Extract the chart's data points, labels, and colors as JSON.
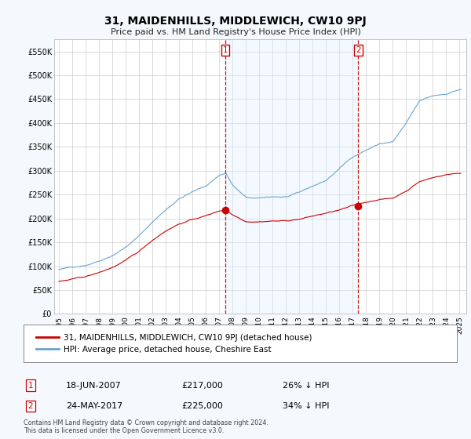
{
  "title": "31, MAIDENHILLS, MIDDLEWICH, CW10 9PJ",
  "subtitle": "Price paid vs. HM Land Registry's House Price Index (HPI)",
  "ylabel_ticks": [
    "£0",
    "£50K",
    "£100K",
    "£150K",
    "£200K",
    "£250K",
    "£300K",
    "£350K",
    "£400K",
    "£450K",
    "£500K",
    "£550K"
  ],
  "ytick_values": [
    0,
    50000,
    100000,
    150000,
    200000,
    250000,
    300000,
    350000,
    400000,
    450000,
    500000,
    550000
  ],
  "ylim": [
    0,
    575000
  ],
  "hpi_color": "#6ba3d0",
  "price_color": "#cc0000",
  "fill_color": "#ddeeff",
  "background_color": "#f5f8fc",
  "plot_bg_color": "#ffffff",
  "grid_color": "#cccccc",
  "legend_line1": "31, MAIDENHILLS, MIDDLEWICH, CW10 9PJ (detached house)",
  "legend_line2": "HPI: Average price, detached house, Cheshire East",
  "annot1_date": "18-JUN-2007",
  "annot1_price": "£217,000",
  "annot1_hpi": "26% ↓ HPI",
  "annot2_date": "24-MAY-2017",
  "annot2_price": "£225,000",
  "annot2_hpi": "34% ↓ HPI",
  "footer": "Contains HM Land Registry data © Crown copyright and database right 2024.\nThis data is licensed under the Open Government Licence v3.0.",
  "sale1_year": 2007.46,
  "sale1_value": 217000,
  "sale2_year": 2017.4,
  "sale2_value": 225000,
  "xstart": 1995,
  "xend": 2025
}
